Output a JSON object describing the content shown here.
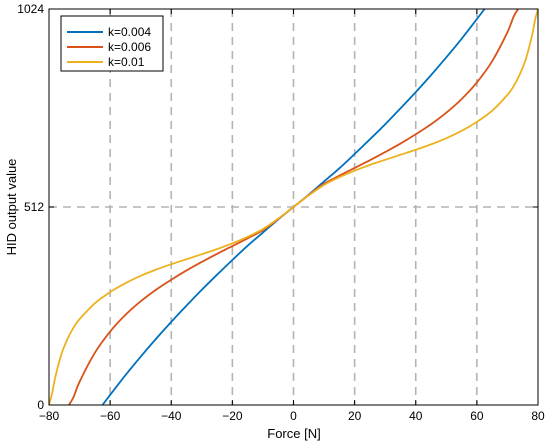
{
  "chart_data": {
    "type": "line",
    "xlabel": "Force [N]",
    "ylabel": "HID output value",
    "xlim": [
      -80,
      80
    ],
    "ylim": [
      0,
      1024
    ],
    "xticks": [
      -80,
      -60,
      -40,
      -20,
      0,
      20,
      40,
      60,
      80
    ],
    "xtick_labels": [
      "−80",
      "−60",
      "−40",
      "−20",
      "0",
      "20",
      "40",
      "60",
      "80"
    ],
    "yticks": [
      0,
      512,
      1024
    ],
    "ytick_labels": [
      "0",
      "512",
      "1024"
    ],
    "grid": "dashed at x ticks and y=512",
    "legend_position": "top-left",
    "series": [
      {
        "name": "k=0.004",
        "color": "#0072BD",
        "x": [
          -62.5,
          -60,
          -55,
          -50,
          -45,
          -40,
          -35,
          -30,
          -25,
          -20,
          -15,
          -10,
          -5,
          0,
          5,
          10,
          15,
          20,
          25,
          30,
          35,
          40,
          45,
          50,
          55,
          60,
          62.5
        ],
        "y": [
          0,
          26,
          77,
          125,
          171,
          215,
          257,
          298,
          337,
          375,
          412,
          446,
          480,
          512,
          544,
          578,
          612,
          649,
          687,
          726,
          767,
          809,
          853,
          899,
          947,
          998,
          1024
        ]
      },
      {
        "name": "k=0.006",
        "color": "#D95319",
        "x": [
          -73.5,
          -72,
          -70,
          -65,
          -60,
          -55,
          -50,
          -45,
          -40,
          -35,
          -30,
          -25,
          -20,
          -15,
          -10,
          -5,
          0,
          5,
          10,
          15,
          20,
          25,
          30,
          35,
          40,
          45,
          50,
          55,
          60,
          65,
          70,
          72,
          73.5
        ],
        "y": [
          0,
          20,
          60,
          135,
          190,
          233,
          268,
          298,
          324,
          348,
          370,
          391,
          411,
          431,
          452,
          481,
          512,
          543,
          572,
          593,
          613,
          633,
          654,
          676,
          700,
          726,
          756,
          791,
          834,
          889,
          964,
          1004,
          1024
        ]
      },
      {
        "name": "k=0.01",
        "color": "#EDB120",
        "x": [
          -80,
          -79,
          -78,
          -76,
          -74,
          -72,
          -70,
          -65,
          -60,
          -55,
          -50,
          -45,
          -40,
          -35,
          -30,
          -25,
          -20,
          -15,
          -10,
          -5,
          0,
          5,
          10,
          15,
          20,
          25,
          30,
          35,
          40,
          45,
          50,
          55,
          60,
          65,
          70,
          72,
          74,
          76,
          78,
          79,
          80
        ],
        "y": [
          0,
          30,
          70,
          130,
          170,
          200,
          222,
          263,
          292,
          315,
          334,
          350,
          364,
          377,
          390,
          403,
          418,
          435,
          455,
          482,
          512,
          542,
          569,
          589,
          606,
          621,
          634,
          647,
          660,
          674,
          690,
          709,
          732,
          761,
          802,
          824,
          854,
          894,
          954,
          994,
          1024
        ]
      }
    ]
  }
}
